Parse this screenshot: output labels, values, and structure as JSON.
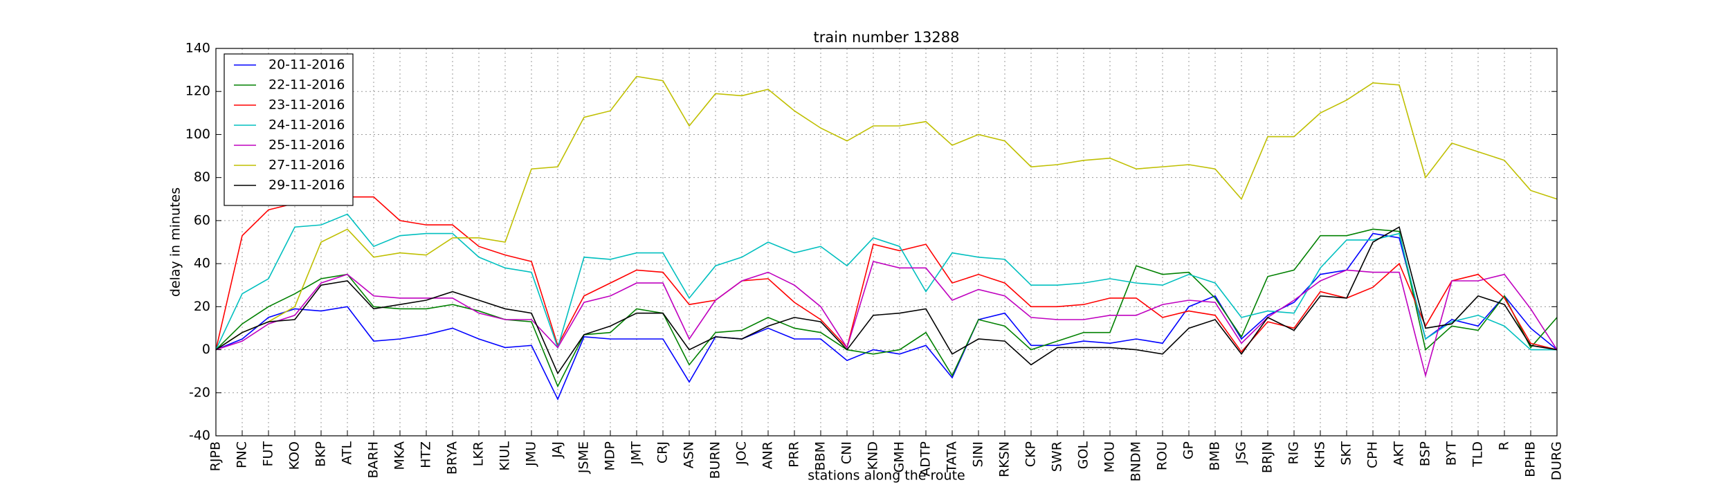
{
  "chart_data": {
    "type": "line",
    "title": "train number 13288",
    "x_label": "stations along the route",
    "y_label": "delay in minutes",
    "categories": [
      "RJPB",
      "PNC",
      "FUT",
      "KOO",
      "BKP",
      "ATL",
      "BARH",
      "MKA",
      "HTZ",
      "BRYA",
      "LKR",
      "KIUL",
      "JMU",
      "JAJ",
      "JSME",
      "MDP",
      "JMT",
      "CRJ",
      "ASN",
      "BURN",
      "JOC",
      "ANR",
      "PRR",
      "BBM",
      "CNI",
      "KND",
      "GMH",
      "ADTP",
      "TATA",
      "SINI",
      "RKSN",
      "CKP",
      "SWR",
      "GOL",
      "MOU",
      "BNDM",
      "ROU",
      "GP",
      "BMB",
      "JSG",
      "BRJN",
      "RIG",
      "KHS",
      "SKT",
      "CPH",
      "AKT",
      "BSP",
      "BYT",
      "TLD",
      "R",
      "BPHB",
      "DURG"
    ],
    "series": [
      {
        "name": "20-11-2016",
        "color": "#0000ff",
        "values": [
          0,
          5,
          15,
          19,
          18,
          20,
          4,
          5,
          7,
          10,
          5,
          1,
          2,
          -23,
          6,
          5,
          5,
          5,
          -15,
          6,
          5,
          10,
          5,
          5,
          -5,
          0,
          -2,
          2,
          -13,
          14,
          17,
          2,
          2,
          4,
          3,
          5,
          3,
          20,
          25,
          5,
          16,
          22,
          35,
          37,
          54,
          52,
          5,
          14,
          11,
          25,
          10,
          0
        ]
      },
      {
        "name": "22-11-2016",
        "color": "#008000",
        "values": [
          0,
          12,
          20,
          26,
          33,
          35,
          20,
          19,
          19,
          21,
          18,
          14,
          13,
          -17,
          7,
          8,
          19,
          17,
          -7,
          8,
          9,
          15,
          10,
          8,
          0,
          -2,
          0,
          8,
          -12,
          14,
          11,
          0,
          4,
          8,
          8,
          39,
          35,
          36,
          24,
          6,
          34,
          37,
          53,
          53,
          56,
          55,
          0,
          11,
          9,
          25,
          1,
          15
        ]
      },
      {
        "name": "23-11-2016",
        "color": "#ff0000",
        "values": [
          0,
          53,
          65,
          68,
          69,
          71,
          71,
          60,
          58,
          58,
          48,
          44,
          41,
          2,
          25,
          31,
          37,
          36,
          21,
          23,
          32,
          33,
          22,
          14,
          1,
          49,
          46,
          49,
          31,
          35,
          31,
          20,
          20,
          21,
          24,
          24,
          15,
          18,
          16,
          -1,
          13,
          10,
          27,
          24,
          29,
          40,
          11,
          32,
          35,
          24,
          3,
          0
        ]
      },
      {
        "name": "24-11-2016",
        "color": "#00bfbf",
        "values": [
          0,
          26,
          33,
          57,
          58,
          63,
          48,
          53,
          54,
          54,
          43,
          38,
          36,
          1,
          43,
          42,
          45,
          45,
          24,
          39,
          43,
          50,
          45,
          48,
          39,
          52,
          48,
          27,
          45,
          43,
          42,
          30,
          30,
          31,
          33,
          31,
          30,
          35,
          31,
          15,
          18,
          17,
          38,
          51,
          51,
          54,
          5,
          13,
          16,
          11,
          0,
          0
        ]
      },
      {
        "name": "25-11-2016",
        "color": "#bf00bf",
        "values": [
          0,
          4,
          12,
          16,
          31,
          35,
          25,
          24,
          24,
          24,
          17,
          14,
          14,
          1,
          22,
          25,
          31,
          31,
          5,
          23,
          32,
          36,
          30,
          20,
          1,
          41,
          38,
          38,
          23,
          28,
          25,
          15,
          14,
          14,
          16,
          16,
          21,
          23,
          22,
          3,
          15,
          23,
          32,
          37,
          36,
          36,
          -12,
          32,
          32,
          35,
          19,
          0
        ]
      },
      {
        "name": "27-11-2016",
        "color": "#bfbf00",
        "values": [
          0,
          8,
          13,
          20,
          50,
          56,
          43,
          45,
          44,
          52,
          52,
          50,
          84,
          85,
          108,
          111,
          127,
          125,
          104,
          119,
          118,
          121,
          111,
          103,
          97,
          104,
          104,
          106,
          95,
          100,
          97,
          85,
          86,
          88,
          89,
          84,
          85,
          86,
          84,
          70,
          99,
          99,
          110,
          116,
          124,
          123,
          80,
          96,
          92,
          88,
          74,
          70
        ]
      },
      {
        "name": "29-11-2016",
        "color": "#000000",
        "values": [
          0,
          8,
          13,
          14,
          30,
          32,
          19,
          21,
          23,
          27,
          23,
          19,
          17,
          -11,
          7,
          11,
          17,
          17,
          0,
          6,
          5,
          11,
          15,
          13,
          0,
          16,
          17,
          19,
          -2,
          5,
          4,
          -7,
          1,
          1,
          1,
          0,
          -2,
          10,
          14,
          -2,
          15,
          9,
          25,
          24,
          50,
          57,
          10,
          12,
          25,
          21,
          2,
          0
        ]
      }
    ],
    "ylim": [
      -40,
      140
    ],
    "yticks": [
      -40,
      -20,
      0,
      20,
      40,
      60,
      80,
      100,
      120,
      140
    ],
    "grid": true,
    "legend": "upper left"
  }
}
